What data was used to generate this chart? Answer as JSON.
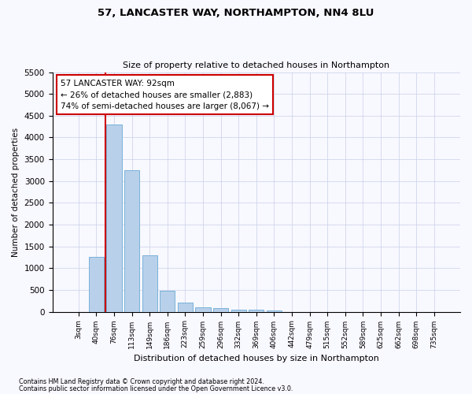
{
  "title": "57, LANCASTER WAY, NORTHAMPTON, NN4 8LU",
  "subtitle": "Size of property relative to detached houses in Northampton",
  "xlabel": "Distribution of detached houses by size in Northampton",
  "ylabel": "Number of detached properties",
  "footnote1": "Contains HM Land Registry data © Crown copyright and database right 2024.",
  "footnote2": "Contains public sector information licensed under the Open Government Licence v3.0.",
  "bar_labels": [
    "3sqm",
    "40sqm",
    "76sqm",
    "113sqm",
    "149sqm",
    "186sqm",
    "223sqm",
    "259sqm",
    "296sqm",
    "332sqm",
    "369sqm",
    "406sqm",
    "442sqm",
    "479sqm",
    "515sqm",
    "552sqm",
    "589sqm",
    "625sqm",
    "662sqm",
    "698sqm",
    "735sqm"
  ],
  "bar_values": [
    0,
    1250,
    4300,
    3250,
    1300,
    480,
    210,
    100,
    80,
    55,
    55,
    30,
    0,
    0,
    0,
    0,
    0,
    0,
    0,
    0,
    0
  ],
  "bar_color": "#b8d0ea",
  "bar_edge_color": "#6aaad4",
  "ylim": [
    0,
    5500
  ],
  "yticks": [
    0,
    500,
    1000,
    1500,
    2000,
    2500,
    3000,
    3500,
    4000,
    4500,
    5000,
    5500
  ],
  "property_line_x": 2.0,
  "property_line_color": "#cc0000",
  "annotation_text": "57 LANCASTER WAY: 92sqm\n← 26% of detached houses are smaller (2,883)\n74% of semi-detached houses are larger (8,067) →",
  "annotation_box_color": "#ffffff",
  "annotation_box_edge": "#cc0000",
  "background_color": "#f8f8ff",
  "grid_color": "#c8d0e8"
}
